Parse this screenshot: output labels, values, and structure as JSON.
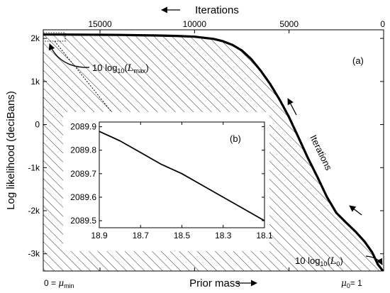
{
  "chart_data": [
    {
      "type": "line",
      "panel_label": "(a)",
      "xlabel": "Prior mass",
      "ylabel": "Log likelihood (deciBans)",
      "top_axis_label": "Iterations",
      "x_top_ticks": [
        {
          "value": 15000,
          "label": "15000"
        },
        {
          "value": 10000,
          "label": "10000"
        },
        {
          "value": 5000,
          "label": "5000"
        },
        {
          "value": 0,
          "label": "0"
        }
      ],
      "x_top_range": [
        18000,
        0
      ],
      "y_ticks": [
        {
          "value": 2000,
          "label": "2k"
        },
        {
          "value": 1000,
          "label": "1k"
        },
        {
          "value": 0,
          "label": "0"
        },
        {
          "value": -1000,
          "label": "-1k"
        },
        {
          "value": -2000,
          "label": "-2k"
        },
        {
          "value": -3000,
          "label": "-3k"
        }
      ],
      "ylim": [
        -3400,
        2200
      ],
      "x_bottom_left": {
        "prefix": "0 = ",
        "symbol": "μ",
        "subscript": "min"
      },
      "x_bottom_right": {
        "symbol": "μ",
        "subscript": "0",
        "suffix": "= 1"
      },
      "series": [
        {
          "x": [
            18000,
            17000,
            16000,
            15000,
            14000,
            13000,
            12000,
            11000,
            10000,
            9000,
            8500,
            8000,
            7500,
            7000,
            6500,
            6000,
            5500,
            5000,
            4500,
            4000,
            3500,
            3000,
            2500,
            2000,
            1500,
            1000,
            600,
            300,
            0
          ],
          "y": [
            2090,
            2089,
            2087,
            2085,
            2081,
            2075,
            2068,
            2058,
            2040,
            1990,
            1935,
            1850,
            1720,
            1520,
            1250,
            940,
            580,
            170,
            -300,
            -780,
            -1220,
            -1680,
            -2050,
            -2270,
            -2480,
            -2720,
            -2970,
            -3250,
            -3420
          ]
        }
      ],
      "annotations": {
        "max_label": {
          "prefix": "10 log",
          "sub": "10",
          "open": "(",
          "symbol": "L",
          "symbol_sub": "max",
          "close": ")"
        },
        "min_label": {
          "prefix": "10 log",
          "sub": "10",
          "open": "(",
          "symbol": "L",
          "symbol_sub": "0",
          "close": ")"
        },
        "curve_label": "Iterations"
      }
    },
    {
      "type": "line",
      "panel_label": "(b)",
      "x_ticks": [
        {
          "value": 18.9,
          "label": "18.9"
        },
        {
          "value": 18.7,
          "label": "18.7"
        },
        {
          "value": 18.5,
          "label": "18.5"
        },
        {
          "value": 18.3,
          "label": "18.3"
        },
        {
          "value": 18.1,
          "label": "18.1"
        }
      ],
      "xlim": [
        18.9,
        18.1
      ],
      "y_ticks": [
        {
          "value": 2089.9,
          "label": "2089.9"
        },
        {
          "value": 2089.8,
          "label": "2089.8"
        },
        {
          "value": 2089.7,
          "label": "2089.7"
        },
        {
          "value": 2089.6,
          "label": "2089.6"
        },
        {
          "value": 2089.5,
          "label": "2089.5"
        }
      ],
      "ylim": [
        2089.47,
        2089.92
      ],
      "series": [
        {
          "x": [
            18.9,
            18.8,
            18.7,
            18.6,
            18.5,
            18.4,
            18.3,
            18.2,
            18.1
          ],
          "y": [
            2089.88,
            2089.84,
            2089.79,
            2089.74,
            2089.7,
            2089.65,
            2089.6,
            2089.55,
            2089.5
          ]
        }
      ]
    }
  ],
  "colors": {
    "line": "#000000",
    "hatch": "#000000",
    "background": "#ffffff"
  }
}
